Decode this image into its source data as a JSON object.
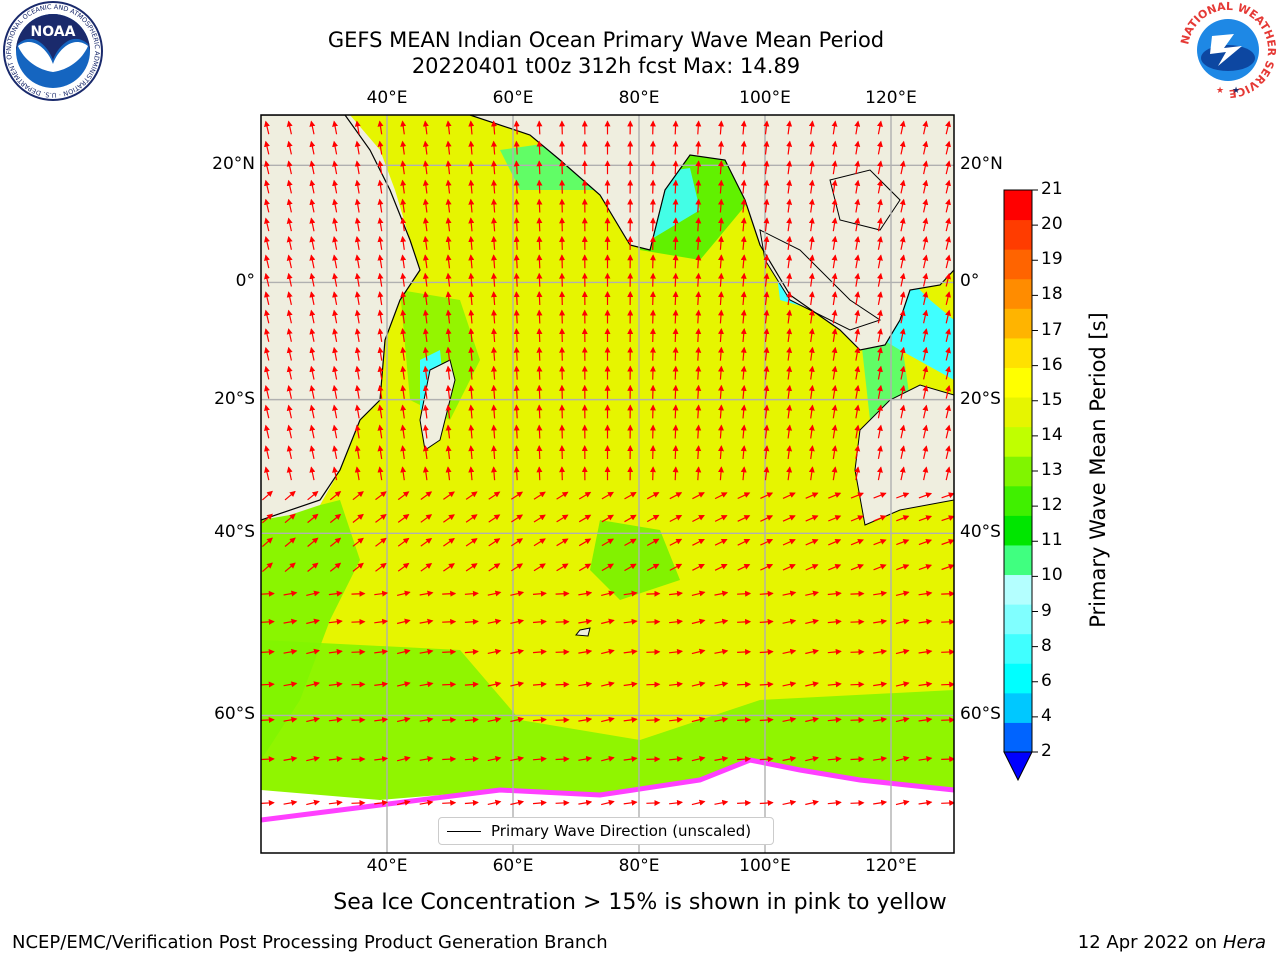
{
  "title_line1": "GEFS MEAN Indian Ocean Primary Wave Mean Period",
  "title_line2": "20220401 t00z 312h fcst   Max: 14.89",
  "map": {
    "lon_ticks": [
      "40°E",
      "60°E",
      "80°E",
      "100°E",
      "120°E"
    ],
    "lat_ticks": [
      "20°N",
      "0°",
      "20°S",
      "40°S",
      "60°S"
    ],
    "lon_values": [
      40,
      60,
      80,
      100,
      120
    ],
    "lat_values": [
      20,
      0,
      -20,
      -40,
      -60
    ],
    "lon_range": [
      20,
      130
    ],
    "lat_range": [
      -70,
      28
    ],
    "grid": true,
    "land_color": "#efeedf",
    "ocean_fill": "#e6f500",
    "arrow_color": "#ff0000",
    "ice_color": "#ff40ff"
  },
  "colorbar": {
    "label": "Primary Wave Mean Period [s]",
    "ticks": [
      "21",
      "20",
      "19",
      "18",
      "17",
      "16",
      "15",
      "14",
      "13",
      "12",
      "11",
      "10",
      "9",
      "8",
      "6",
      "4",
      "2"
    ],
    "colors_low_to_high": [
      "#0064ff",
      "#00c8ff",
      "#00ffff",
      "#40ffff",
      "#80ffff",
      "#b4ffff",
      "#40ff80",
      "#00e600",
      "#40f000",
      "#80f500",
      "#c0ff00",
      "#e6f500",
      "#ffff00",
      "#ffe100",
      "#ffb400",
      "#ff8c00",
      "#ff6400",
      "#ff3c00",
      "#ff0000"
    ],
    "under_color": "#0000ff"
  },
  "legend": {
    "label": "Primary Wave Direction (unscaled)"
  },
  "footnote": "Sea Ice Concentration > 15% is shown in pink to yellow",
  "credit_left": "NCEP/EMC/Verification Post Processing Product Generation Branch",
  "credit_right_prefix": "12 Apr 2022 on ",
  "credit_right_host": "Hera",
  "noaa_logo": {
    "text": "NOAA",
    "ring_text": "NATIONAL OCEANIC AND ATMOSPHERIC ADMINISTRATION · U.S. DEPARTMENT OF COMMERCE"
  },
  "nws_logo": {
    "ring_text": "NATIONAL WEATHER SERVICE"
  }
}
